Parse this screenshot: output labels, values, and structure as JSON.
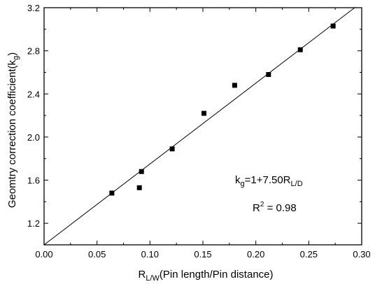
{
  "chart_data": {
    "type": "scatter",
    "xlabel_main": "R",
    "xlabel_sub": "L/W",
    "xlabel_rest": "(Pin length/Pin distance)",
    "ylabel_main": "Geomtry correction coefficient(k",
    "ylabel_sub": "g",
    "ylabel_end": ")",
    "xlim": [
      0.0,
      0.3
    ],
    "ylim": [
      1.0,
      3.2
    ],
    "xticks": [
      "0.00",
      "0.05",
      "0.10",
      "0.15",
      "0.20",
      "0.25",
      "0.30"
    ],
    "yticks": [
      "1.2",
      "1.6",
      "2.0",
      "2.4",
      "2.8",
      "3.2"
    ],
    "series": [
      {
        "x": [
          0.064,
          0.09,
          0.092,
          0.121,
          0.151,
          0.18,
          0.212,
          0.242,
          0.273
        ],
        "y": [
          1.48,
          1.53,
          1.68,
          1.89,
          2.22,
          2.48,
          2.58,
          2.81,
          3.03
        ]
      }
    ],
    "fit": {
      "intercept": 1.0,
      "slope": 7.5
    },
    "annotations": {
      "equation_k": "k",
      "equation_sub": "g",
      "equation_rest": "=1+7.50R",
      "equation_sub2": "L/D",
      "r2_text": "R",
      "r2_sup": "2",
      "r2_value": " = 0.98"
    }
  }
}
